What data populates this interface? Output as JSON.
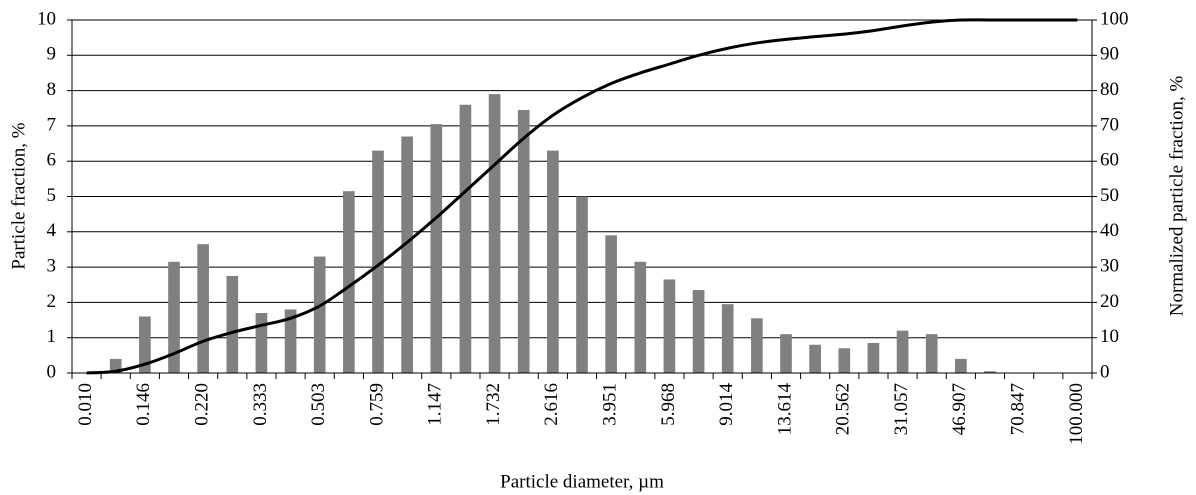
{
  "chart_data": {
    "type": "bar",
    "x_label": "Particle diameter, µm",
    "y_label": "Particle fraction, %",
    "y2_label": "Normalized particle fraction, %",
    "categories": [
      "0.010",
      null,
      "0.146",
      null,
      "0.220",
      null,
      "0.333",
      null,
      "0.503",
      null,
      "0.759",
      null,
      "1.147",
      null,
      "1.732",
      null,
      "2.616",
      null,
      "3.951",
      null,
      "5.968",
      null,
      "9.014",
      null,
      "13.614",
      null,
      "20.562",
      null,
      "31.057",
      null,
      "46.907",
      null,
      "70.847",
      null,
      "100.000"
    ],
    "series": [
      {
        "type": "bar",
        "color": "#808080",
        "values": [
          0,
          0.4,
          1.6,
          3.15,
          3.65,
          2.75,
          1.7,
          1.8,
          3.3,
          5.15,
          6.3,
          6.7,
          7.05,
          7.6,
          7.9,
          7.45,
          6.3,
          5.0,
          3.9,
          3.15,
          2.65,
          2.35,
          1.95,
          1.55,
          1.1,
          0.8,
          0.7,
          0.85,
          1.2,
          1.1,
          0.4,
          0.05,
          0,
          0,
          0
        ]
      },
      {
        "type": "line",
        "axis": "y2",
        "color": "#000000",
        "values": [
          0,
          0.5,
          2.5,
          5.5,
          9,
          11.5,
          13.5,
          15.5,
          19,
          24.5,
          30.5,
          37,
          44,
          51.5,
          59,
          66.5,
          73,
          78,
          82,
          85,
          87.5,
          90,
          92,
          93.5,
          94.5,
          95.3,
          96,
          97,
          98.3,
          99.4,
          100,
          100,
          100,
          100,
          100
        ]
      }
    ],
    "ylim": [
      0,
      10
    ],
    "yticks": [
      0,
      1,
      2,
      3,
      4,
      5,
      6,
      7,
      8,
      9,
      10
    ],
    "y2lim": [
      0,
      100
    ],
    "y2ticks": [
      0,
      10,
      20,
      30,
      40,
      50,
      60,
      70,
      80,
      90,
      100
    ],
    "grid": true
  }
}
